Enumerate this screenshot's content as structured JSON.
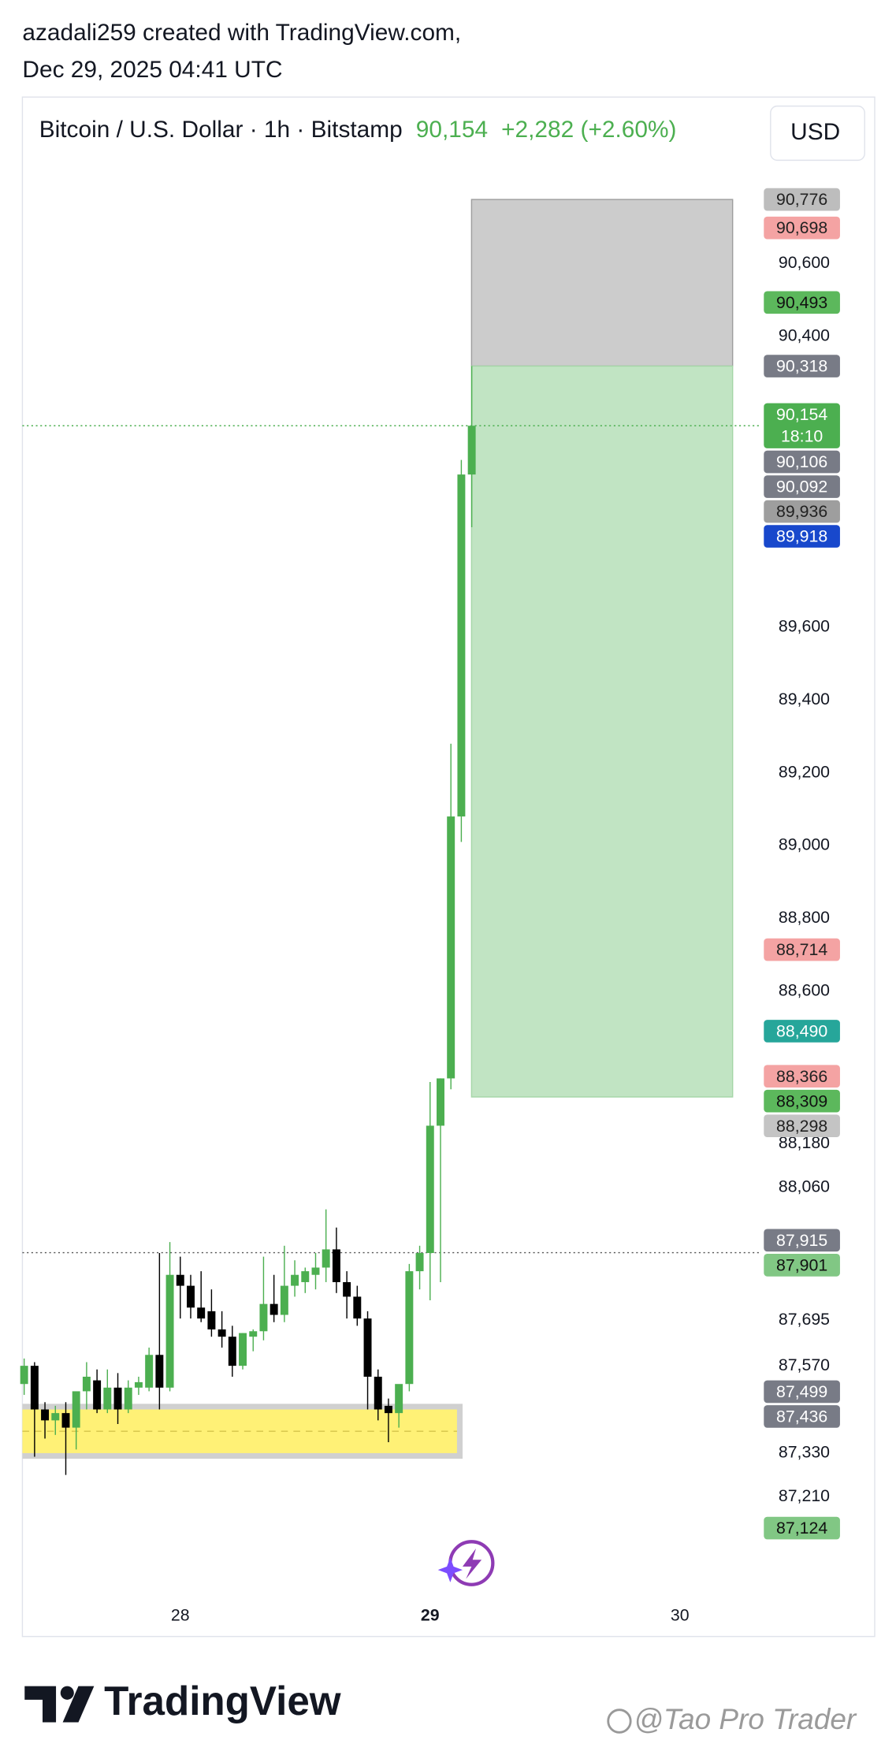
{
  "header": {
    "author_line": "azadali259 created with TradingView.com,",
    "date_line": "Dec 29, 2025 04:41 UTC"
  },
  "chart_data": {
    "type": "candlestick",
    "title": "Bitcoin / U.S. Dollar · 1h · Bitstamp",
    "last_price": "90,154",
    "change": "+2,282 (+2.60%)",
    "currency": "USD",
    "up_color": "#4caf50",
    "down_color": "#000000",
    "xlim": [
      27.368,
      30.327
    ],
    "xticks": [
      28,
      29,
      30
    ],
    "ylim": [
      86950,
      90890
    ],
    "yticks": [
      {
        "value": 90600,
        "label": "90,600"
      },
      {
        "value": 90400,
        "label": "90,400"
      },
      {
        "value": 89600,
        "label": "89,600"
      },
      {
        "value": 89400,
        "label": "89,400"
      },
      {
        "value": 89200,
        "label": "89,200"
      },
      {
        "value": 89000,
        "label": "89,000"
      },
      {
        "value": 88800,
        "label": "88,800"
      },
      {
        "value": 88600,
        "label": "88,600"
      },
      {
        "value": 88180,
        "label": "88,180"
      },
      {
        "value": 88060,
        "label": "88,060"
      },
      {
        "value": 87695,
        "label": "87,695"
      },
      {
        "value": 87570,
        "label": "87,570"
      },
      {
        "value": 87330,
        "label": "87,330"
      },
      {
        "value": 87210,
        "label": "87,210"
      }
    ],
    "x": [
      27.375,
      27.4167,
      27.4583,
      27.5,
      27.5417,
      27.5833,
      27.625,
      27.6667,
      27.7083,
      27.75,
      27.7917,
      27.8333,
      27.875,
      27.9167,
      27.9583,
      28,
      28.0417,
      28.0833,
      28.125,
      28.1667,
      28.2083,
      28.25,
      28.2917,
      28.3333,
      28.375,
      28.4167,
      28.4583,
      28.5,
      28.5417,
      28.5833,
      28.625,
      28.6667,
      28.7083,
      28.75,
      28.7917,
      28.8333,
      28.875,
      28.9167,
      28.9583,
      29,
      29.0417,
      29.0833,
      29.125,
      29.1667
    ],
    "open": [
      87520,
      87570,
      87450,
      87420,
      87440,
      87400,
      87500,
      87530,
      87450,
      87510,
      87450,
      87510,
      87510,
      87600,
      87510,
      87820,
      87790,
      87730,
      87720,
      87670,
      87650,
      87570,
      87650,
      87665,
      87740,
      87710,
      87790,
      87800,
      87820,
      87840,
      87890,
      87800,
      87760,
      87700,
      87540,
      87460,
      87440,
      87520,
      87830,
      87880,
      88230,
      88360,
      89080,
      90020
    ],
    "high": [
      87590,
      87580,
      87470,
      87460,
      87470,
      87470,
      87580,
      87560,
      87560,
      87550,
      87530,
      87540,
      87620,
      87880,
      87910,
      87870,
      87820,
      87830,
      87780,
      87720,
      87680,
      87660,
      87670,
      87870,
      87820,
      87900,
      87860,
      87840,
      87880,
      88000,
      87950,
      87830,
      87790,
      87720,
      87560,
      87480,
      87500,
      87850,
      87900,
      88350,
      88360,
      89280,
      90060,
      90318
    ],
    "low": [
      87490,
      87320,
      87370,
      87380,
      87270,
      87340,
      87450,
      87440,
      87440,
      87410,
      87440,
      87490,
      87500,
      87450,
      87500,
      87700,
      87700,
      87690,
      87650,
      87620,
      87540,
      87560,
      87610,
      87640,
      87690,
      87690,
      87760,
      87770,
      87780,
      87800,
      87770,
      87700,
      87680,
      87450,
      87420,
      87360,
      87400,
      87500,
      87780,
      87750,
      87800,
      88330,
      89010,
      89875
    ],
    "close": [
      87570,
      87450,
      87420,
      87440,
      87400,
      87500,
      87540,
      87450,
      87510,
      87450,
      87510,
      87525,
      87600,
      87510,
      87820,
      87790,
      87730,
      87700,
      87670,
      87650,
      87570,
      87660,
      87665,
      87740,
      87710,
      87790,
      87820,
      87830,
      87840,
      87890,
      87800,
      87760,
      87700,
      87540,
      87450,
      87440,
      87520,
      87830,
      87880,
      88230,
      88360,
      89080,
      90020,
      90154
    ],
    "zones": [
      {
        "from": 87330,
        "to": 87450,
        "x_from": 27.368,
        "x_to": 29.13,
        "color": "#fff176",
        "border": "#d0d0d0"
      },
      {
        "from": 90318,
        "to": 90776,
        "x_from": 29.166,
        "x_to": 30.211,
        "color": "#cccccc",
        "border": "#9e9e9e"
      },
      {
        "from": 88309,
        "to": 90318,
        "x_from": 29.166,
        "x_to": 30.211,
        "color": "#c1e4c3",
        "border": "#a5d6a7"
      }
    ],
    "price_lines": [
      {
        "value": 90154,
        "color": "#4caf50"
      },
      {
        "value": 87881,
        "color": "#555555"
      }
    ],
    "badges": [
      {
        "value": 90776,
        "label": "90,776",
        "color": "#bdbdbd",
        "text_color": "#222"
      },
      {
        "value": 90698,
        "label": "90,698",
        "color": "#f4a3a3",
        "text_color": "#222"
      },
      {
        "value": 90493,
        "label": "90,493",
        "color": "#5cb85c",
        "text_color": "#111"
      },
      {
        "value": 90318,
        "label": "90,318",
        "color": "#787b86",
        "text_color": "#fff"
      },
      {
        "value": 90154,
        "label": "90,154",
        "countdown": "18:10",
        "color": "#4caf50",
        "text_color": "#fff"
      },
      {
        "value": 90106,
        "label": "90,106",
        "color": "#787b86",
        "text_color": "#fff"
      },
      {
        "value": 90092,
        "label": "90,092",
        "color": "#787b86",
        "text_color": "#fff"
      },
      {
        "value": 89936,
        "label": "89,936",
        "color": "#9e9e9e",
        "text_color": "#222"
      },
      {
        "value": 89918,
        "label": "89,918",
        "color": "#1848cc",
        "text_color": "#fff"
      },
      {
        "value": 88714,
        "label": "88,714",
        "color": "#f4a3a3",
        "text_color": "#222"
      },
      {
        "value": 88490,
        "label": "88,490",
        "color": "#26a69a",
        "text_color": "#fff"
      },
      {
        "value": 88366,
        "label": "88,366",
        "color": "#f4a3a3",
        "text_color": "#222"
      },
      {
        "value": 88309,
        "label": "88,309",
        "color": "#5cb85c",
        "text_color": "#111"
      },
      {
        "value": 88298,
        "label": "88,298",
        "color": "#c4c4c4",
        "text_color": "#222"
      },
      {
        "value": 87915,
        "label": "87,915",
        "color": "#787b86",
        "text_color": "#fff"
      },
      {
        "value": 87901,
        "label": "87,901",
        "color": "#81c784",
        "text_color": "#111"
      },
      {
        "value": 87499,
        "label": "87,499",
        "color": "#787b86",
        "text_color": "#fff"
      },
      {
        "value": 87436,
        "label": "87,436",
        "color": "#787b86",
        "text_color": "#fff"
      },
      {
        "value": 87124,
        "label": "87,124",
        "color": "#81c784",
        "text_color": "#111"
      }
    ]
  },
  "footer": {
    "brand": "TradingView",
    "watermark": "@Tao Pro Trader"
  }
}
